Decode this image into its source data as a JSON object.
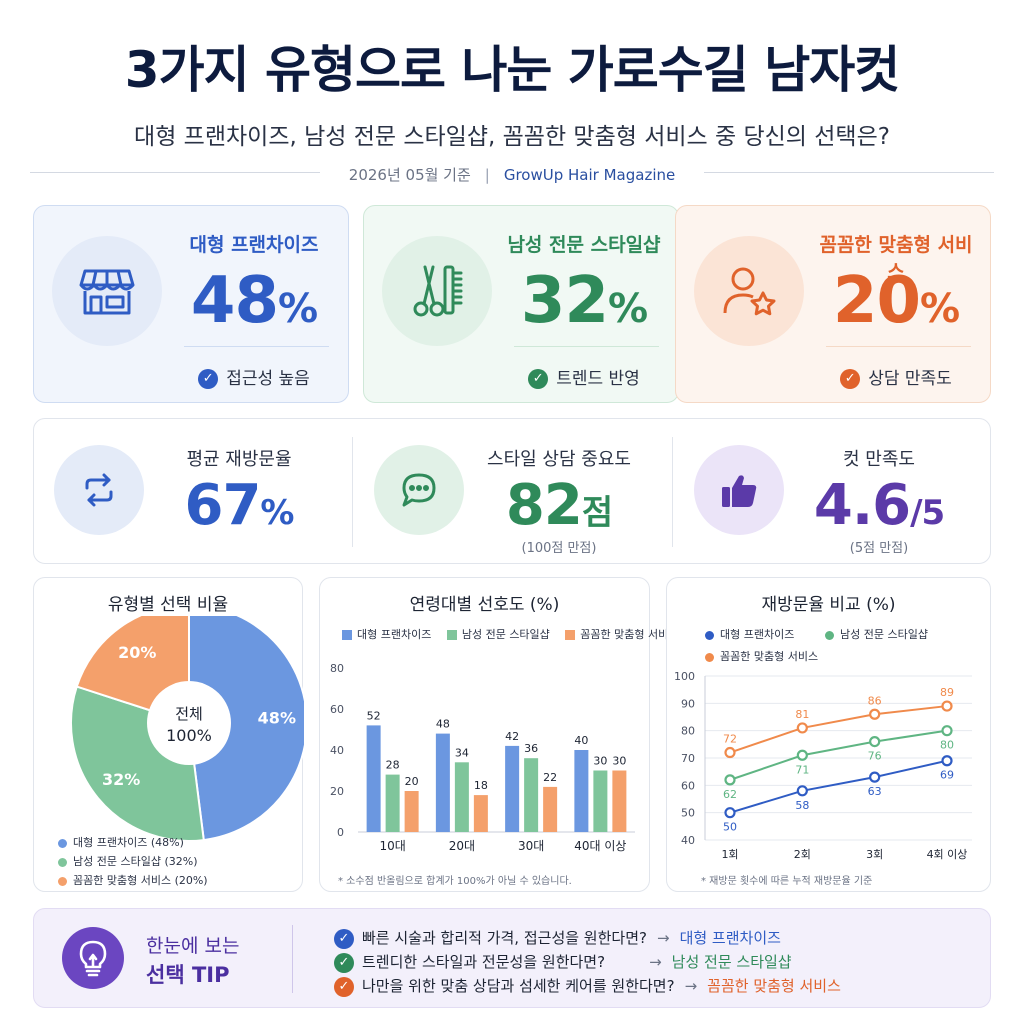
{
  "title": "3가지 유형으로 나눈 가로수길 남자컷",
  "subtitle": "대형 프랜차이즈, 남성 전문 스타일샵, 꼼꼼한 맞춤형 서비스 중 당신의 선택은?",
  "meta": {
    "date": "2026년 05월 기준",
    "separator": "|",
    "source": "GrowUp Hair Magazine"
  },
  "types": [
    {
      "name": "대형 프랜차이즈",
      "value": "48",
      "unit": "%",
      "feature": "접근성 높음",
      "icon": "storefront-icon",
      "color": "#2f5cc4",
      "light": "#e4ebf8",
      "bg": "#f1f5fc",
      "border": "#cfdcf2"
    },
    {
      "name": "남성 전문 스타일샵",
      "value": "32",
      "unit": "%",
      "feature": "트렌드 반영",
      "icon": "scissors-comb-icon",
      "color": "#2f8a5a",
      "light": "#e1f1e7",
      "bg": "#f1f9f4",
      "border": "#cfe8d8"
    },
    {
      "name": "꼼꼼한 맞춤형 서비스",
      "value": "20",
      "unit": "%",
      "feature": "상담 만족도",
      "icon": "user-star-icon",
      "color": "#e0622b",
      "light": "#fbe4d6",
      "bg": "#fdf4ee",
      "border": "#f5d9c6"
    }
  ],
  "stats": [
    {
      "label": "평균 재방문율",
      "value": "67",
      "unit": "%",
      "note": "",
      "icon": "repeat-icon",
      "color": "#2f5cc4",
      "light": "#e4ebf8"
    },
    {
      "label": "스타일 상담 중요도",
      "value": "82",
      "unit": "점",
      "note": "(100점 만점)",
      "icon": "chat-bubble-icon",
      "color": "#2f8a5a",
      "light": "#e1f1e7"
    },
    {
      "label": "컷 만족도",
      "value": "4.6",
      "unit": "/5",
      "note": "(5점 만점)",
      "icon": "thumbs-up-icon",
      "color": "#5b3aa8",
      "light": "#ebe4f8"
    }
  ],
  "chart_data": [
    {
      "type": "pie",
      "title": "유형별 선택 비율",
      "center_label_line1": "전체",
      "center_label_line2": "100%",
      "slices": [
        {
          "label": "대형 프랜차이즈",
          "value": 48,
          "display": "48%",
          "legend": "대형 프랜차이즈 (48%)",
          "color": "#6b97e0"
        },
        {
          "label": "남성 전문 스타일샵",
          "value": 32,
          "display": "32%",
          "legend": "남성 전문 스타일샵 (32%)",
          "color": "#7fc59b"
        },
        {
          "label": "꼼꼼한 맞춤형 서비스",
          "value": 20,
          "display": "20%",
          "legend": "꼼꼼한 맞춤형 서비스 (20%)",
          "color": "#f4a06b"
        }
      ]
    },
    {
      "type": "bar",
      "title": "연령대별 선호도 (%)",
      "categories": [
        "10대",
        "20대",
        "30대",
        "40대 이상"
      ],
      "series": [
        {
          "name": "대형 프랜차이즈",
          "values": [
            52,
            48,
            42,
            40
          ],
          "color": "#6b97e0"
        },
        {
          "name": "남성 전문 스타일샵",
          "values": [
            28,
            34,
            36,
            30
          ],
          "color": "#7fc59b"
        },
        {
          "name": "꼼꼼한 맞춤형 서비스",
          "values": [
            20,
            18,
            22,
            30
          ],
          "color": "#f4a06b"
        }
      ],
      "ylim": [
        0,
        80
      ],
      "yticks": [
        0,
        20,
        40,
        60,
        80
      ],
      "footnote": "* 소수점 반올림으로 합계가 100%가 아닐 수 있습니다."
    },
    {
      "type": "line",
      "title": "재방문율 비교 (%)",
      "categories": [
        "1회",
        "2회",
        "3회",
        "4회 이상"
      ],
      "series": [
        {
          "name": "대형 프랜차이즈",
          "values": [
            50,
            58,
            63,
            69
          ],
          "color": "#2f5cc4"
        },
        {
          "name": "남성 전문 스타일샵",
          "values": [
            62,
            71,
            76,
            80
          ],
          "color": "#5fb583"
        },
        {
          "name": "꼼꼼한 맞춤형 서비스",
          "values": [
            72,
            81,
            86,
            89
          ],
          "color": "#f08a4b"
        }
      ],
      "ylim": [
        40,
        100
      ],
      "yticks": [
        40,
        50,
        60,
        70,
        80,
        90,
        100
      ],
      "footnote": "* 재방문 횟수에 따른 누적 재방문율 기준"
    }
  ],
  "tip": {
    "title_line1": "한눈에 보는",
    "title_line2": "선택 TIP",
    "lines": [
      {
        "question": "빠른 시술과 합리적 가격, 접근성을 원한다면?",
        "arrow": "→",
        "answer": "대형 프랜차이즈",
        "color": "#2f5cc4"
      },
      {
        "question": "트렌디한 스타일과 전문성을 원한다면?",
        "arrow": "→",
        "answer": "남성 전문 스타일샵",
        "color": "#2f8a5a"
      },
      {
        "question": "나만을 위한 맞춤 상담과 섬세한 케어를 원한다면?",
        "arrow": "→",
        "answer": "꼼꼼한 맞춤형 서비스",
        "color": "#e0622b"
      }
    ]
  }
}
